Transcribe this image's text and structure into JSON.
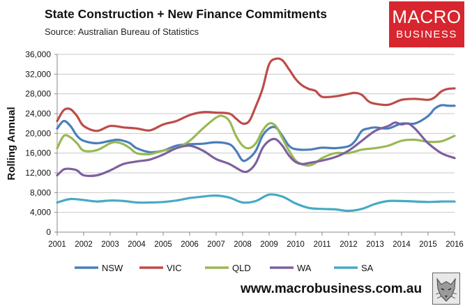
{
  "header": {
    "title": "State Construction + New Finance Commitments",
    "source": "Source: Australian Bureau of Statistics"
  },
  "logo": {
    "line1": "MACRO",
    "line2": "BUSINESS"
  },
  "footer": {
    "url": "www.macrobusiness.com.au"
  },
  "colors": {
    "NSW": "#4a7ebb",
    "VIC": "#be4b48",
    "QLD": "#98b954",
    "WA": "#7d60a0",
    "SA": "#46aac5"
  },
  "chart_data": {
    "type": "line",
    "title": "State Construction + New Finance Commitments",
    "ylabel": "Rolling Annual",
    "xlabel": "",
    "xlim": [
      2001,
      2016
    ],
    "ylim": [
      0,
      36000
    ],
    "yticks": [
      0,
      4000,
      8000,
      12000,
      16000,
      20000,
      24000,
      28000,
      32000,
      36000
    ],
    "ytick_labels": [
      "0",
      "4,000",
      "8,000",
      "12,000",
      "16,000",
      "20,000",
      "24,000",
      "28,000",
      "32,000",
      "36,000"
    ],
    "xticks": [
      2001,
      2002,
      2003,
      2004,
      2005,
      2006,
      2007,
      2008,
      2009,
      2010,
      2011,
      2012,
      2013,
      2014,
      2015,
      2016
    ],
    "xtick_labels": [
      "2001",
      "2002",
      "2003",
      "2004",
      "2005",
      "2006",
      "2007",
      "2008",
      "2009",
      "2010",
      "2011",
      "2012",
      "2013",
      "2014",
      "2015",
      "2016"
    ],
    "grid": true,
    "legend_position": "bottom",
    "series": [
      {
        "name": "NSW",
        "x": [
          2001.0,
          2001.25,
          2001.5,
          2001.75,
          2002.0,
          2002.5,
          2003.0,
          2003.25,
          2003.5,
          2003.75,
          2004.0,
          2004.5,
          2005.0,
          2005.5,
          2006.0,
          2006.5,
          2007.0,
          2007.5,
          2007.75,
          2008.0,
          2008.25,
          2008.5,
          2008.75,
          2009.0,
          2009.25,
          2009.5,
          2009.75,
          2010.0,
          2010.5,
          2011.0,
          2011.5,
          2012.0,
          2012.25,
          2012.5,
          2012.75,
          2013.0,
          2013.5,
          2014.0,
          2014.5,
          2015.0,
          2015.25,
          2015.5,
          2015.75,
          2016.0
        ],
        "y": [
          21000,
          22500,
          21500,
          19500,
          18500,
          18000,
          18500,
          18700,
          18500,
          18000,
          17000,
          16200,
          16500,
          17500,
          17800,
          17900,
          18200,
          17800,
          16500,
          14500,
          15000,
          16500,
          19500,
          21000,
          21200,
          19500,
          17500,
          16800,
          16700,
          17100,
          17000,
          17400,
          18500,
          20500,
          21000,
          21200,
          21000,
          22000,
          22000,
          23500,
          25000,
          25700,
          25600,
          25600
        ]
      },
      {
        "name": "VIC",
        "x": [
          2001.0,
          2001.25,
          2001.5,
          2001.75,
          2002.0,
          2002.5,
          2003.0,
          2003.5,
          2004.0,
          2004.5,
          2005.0,
          2005.5,
          2006.0,
          2006.5,
          2007.0,
          2007.5,
          2007.75,
          2008.0,
          2008.25,
          2008.5,
          2008.75,
          2009.0,
          2009.25,
          2009.5,
          2009.75,
          2010.0,
          2010.25,
          2010.5,
          2010.75,
          2011.0,
          2011.5,
          2012.0,
          2012.25,
          2012.5,
          2012.75,
          2013.0,
          2013.5,
          2014.0,
          2014.5,
          2015.0,
          2015.25,
          2015.5,
          2015.75,
          2016.0
        ],
        "y": [
          22500,
          24700,
          24900,
          23500,
          21500,
          20500,
          21500,
          21200,
          21000,
          20600,
          21800,
          22500,
          23700,
          24300,
          24200,
          24000,
          23000,
          22000,
          22500,
          25500,
          29000,
          34000,
          35100,
          34800,
          33000,
          31000,
          29700,
          29000,
          28600,
          27400,
          27500,
          28000,
          28200,
          27800,
          26500,
          26000,
          25800,
          26800,
          27000,
          26800,
          27300,
          28500,
          29000,
          29100
        ]
      },
      {
        "name": "QLD",
        "x": [
          2001.0,
          2001.25,
          2001.5,
          2001.75,
          2002.0,
          2002.5,
          2003.0,
          2003.25,
          2003.5,
          2003.75,
          2004.0,
          2004.5,
          2005.0,
          2005.5,
          2006.0,
          2006.5,
          2007.0,
          2007.25,
          2007.5,
          2007.75,
          2008.0,
          2008.25,
          2008.5,
          2008.75,
          2009.0,
          2009.25,
          2009.5,
          2009.75,
          2010.0,
          2010.25,
          2010.5,
          2010.75,
          2011.0,
          2011.5,
          2012.0,
          2012.5,
          2013.0,
          2013.5,
          2014.0,
          2014.5,
          2015.0,
          2015.5,
          2016.0
        ],
        "y": [
          17000,
          19500,
          19200,
          18000,
          16500,
          16600,
          18000,
          18200,
          17800,
          17000,
          16000,
          15800,
          16500,
          17000,
          18500,
          21000,
          23200,
          23500,
          22500,
          19500,
          17500,
          17000,
          18000,
          20500,
          22000,
          21500,
          19000,
          16500,
          14500,
          13700,
          13500,
          14000,
          15000,
          16000,
          16000,
          16700,
          17000,
          17500,
          18500,
          18700,
          18300,
          18400,
          19500
        ]
      },
      {
        "name": "WA",
        "x": [
          2001.0,
          2001.25,
          2001.5,
          2001.75,
          2002.0,
          2002.5,
          2003.0,
          2003.5,
          2004.0,
          2004.5,
          2005.0,
          2005.5,
          2006.0,
          2006.5,
          2007.0,
          2007.5,
          2008.0,
          2008.25,
          2008.5,
          2008.75,
          2009.0,
          2009.25,
          2009.5,
          2009.75,
          2010.0,
          2010.25,
          2010.5,
          2011.0,
          2011.5,
          2012.0,
          2012.5,
          2013.0,
          2013.5,
          2013.75,
          2014.0,
          2014.25,
          2014.5,
          2014.75,
          2015.0,
          2015.5,
          2016.0
        ],
        "y": [
          11500,
          12700,
          12800,
          12500,
          11500,
          11500,
          12500,
          13800,
          14300,
          14700,
          15700,
          17000,
          17500,
          16500,
          14800,
          13800,
          12300,
          12500,
          14000,
          17000,
          18500,
          18800,
          17500,
          15500,
          14200,
          13800,
          14000,
          14500,
          15200,
          16500,
          18500,
          20500,
          21500,
          22200,
          21800,
          22000,
          21000,
          19500,
          18000,
          16000,
          15000
        ]
      },
      {
        "name": "SA",
        "x": [
          2001.0,
          2001.5,
          2002.0,
          2002.5,
          2003.0,
          2003.5,
          2004.0,
          2004.5,
          2005.0,
          2005.5,
          2006.0,
          2006.5,
          2007.0,
          2007.5,
          2008.0,
          2008.5,
          2009.0,
          2009.5,
          2010.0,
          2010.5,
          2011.0,
          2011.5,
          2012.0,
          2012.5,
          2013.0,
          2013.5,
          2014.0,
          2014.5,
          2015.0,
          2015.5,
          2016.0
        ],
        "y": [
          6000,
          6700,
          6500,
          6200,
          6400,
          6300,
          6000,
          6000,
          6100,
          6400,
          6900,
          7200,
          7400,
          7000,
          6000,
          6300,
          7600,
          7200,
          5800,
          4900,
          4700,
          4600,
          4300,
          4700,
          5700,
          6300,
          6300,
          6200,
          6100,
          6200,
          6200
        ]
      }
    ]
  }
}
